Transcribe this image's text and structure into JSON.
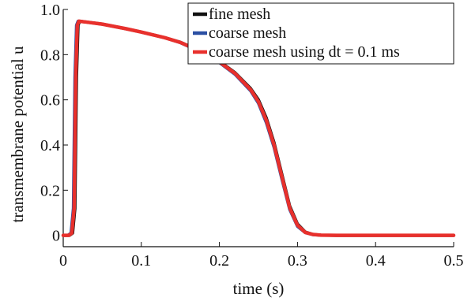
{
  "chart_data": {
    "type": "line",
    "title": "",
    "xlabel": "time (s)",
    "ylabel": "transmembrane potential u",
    "xlim": [
      0,
      0.5
    ],
    "ylim": [
      -0.05,
      1.0
    ],
    "xticks": [
      0,
      0.1,
      0.2,
      0.3,
      0.4,
      0.5
    ],
    "yticks": [
      0,
      0.2,
      0.4,
      0.6,
      0.8,
      1.0
    ],
    "xtick_labels": [
      "0",
      "0.1",
      "0.2",
      "0.3",
      "0.4",
      "0.5"
    ],
    "ytick_labels": [
      "0",
      "0.2",
      "0.4",
      "0.6",
      "0.8",
      "1.0"
    ],
    "grid": false,
    "legend_position": "top-right",
    "series": [
      {
        "name": "fine mesh",
        "color": "#111111",
        "x": [
          0,
          0.008,
          0.012,
          0.015,
          0.017,
          0.019,
          0.021,
          0.03,
          0.05,
          0.08,
          0.1,
          0.13,
          0.15,
          0.18,
          0.2,
          0.22,
          0.24,
          0.25,
          0.26,
          0.27,
          0.28,
          0.29,
          0.3,
          0.31,
          0.32,
          0.33,
          0.35,
          0.4,
          0.45,
          0.5
        ],
        "y": [
          0,
          0,
          0.01,
          0.12,
          0.7,
          0.93,
          0.948,
          0.944,
          0.935,
          0.915,
          0.9,
          0.875,
          0.855,
          0.81,
          0.77,
          0.72,
          0.65,
          0.6,
          0.52,
          0.41,
          0.27,
          0.13,
          0.05,
          0.015,
          0.004,
          0.001,
          0,
          0,
          0,
          0
        ]
      },
      {
        "name": "coarse mesh",
        "color": "#2b4fa3",
        "x": [
          0,
          0.006,
          0.01,
          0.013,
          0.015,
          0.017,
          0.019,
          0.03,
          0.05,
          0.08,
          0.1,
          0.13,
          0.15,
          0.18,
          0.2,
          0.22,
          0.24,
          0.25,
          0.26,
          0.27,
          0.28,
          0.29,
          0.3,
          0.31,
          0.32,
          0.33,
          0.35,
          0.4,
          0.45,
          0.5
        ],
        "y": [
          0,
          0,
          0.01,
          0.12,
          0.7,
          0.93,
          0.948,
          0.944,
          0.935,
          0.915,
          0.9,
          0.875,
          0.853,
          0.806,
          0.765,
          0.713,
          0.64,
          0.585,
          0.5,
          0.39,
          0.25,
          0.115,
          0.04,
          0.012,
          0.003,
          0.001,
          0,
          0,
          0,
          0
        ]
      },
      {
        "name": "coarse mesh using dt = 0.1 ms",
        "color": "#e8302c",
        "x": [
          0,
          0.007,
          0.011,
          0.014,
          0.016,
          0.018,
          0.02,
          0.03,
          0.05,
          0.08,
          0.1,
          0.13,
          0.15,
          0.18,
          0.2,
          0.22,
          0.24,
          0.25,
          0.26,
          0.27,
          0.28,
          0.29,
          0.3,
          0.31,
          0.32,
          0.33,
          0.35,
          0.4,
          0.45,
          0.5
        ],
        "y": [
          0,
          0,
          0.01,
          0.12,
          0.7,
          0.93,
          0.948,
          0.944,
          0.935,
          0.915,
          0.9,
          0.875,
          0.854,
          0.808,
          0.768,
          0.717,
          0.645,
          0.592,
          0.51,
          0.4,
          0.26,
          0.122,
          0.045,
          0.013,
          0.004,
          0.001,
          0,
          0,
          0,
          0
        ]
      }
    ]
  }
}
